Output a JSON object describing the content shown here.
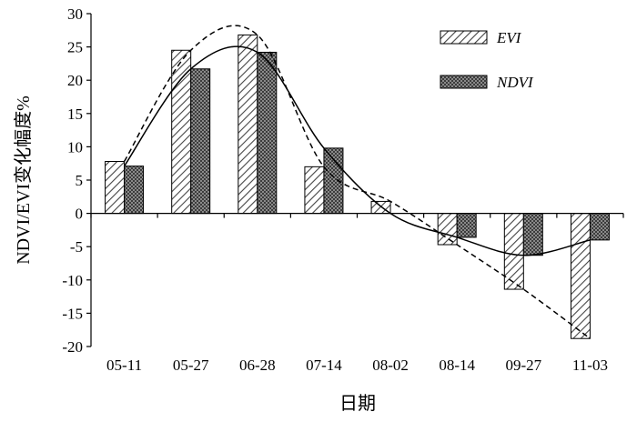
{
  "chart_data": {
    "type": "bar",
    "title": "",
    "xlabel": "日期",
    "ylabel": "NDVI/EVI变化幅度%",
    "ylim": [
      -20,
      30
    ],
    "yticks": [
      -20,
      -15,
      -10,
      -5,
      0,
      5,
      10,
      15,
      20,
      25,
      30
    ],
    "categories": [
      "05-11",
      "05-27",
      "06-28",
      "07-14",
      "08-02",
      "08-14",
      "09-27",
      "11-03"
    ],
    "series": [
      {
        "name": "EVI",
        "values": [
          7.8,
          24.5,
          26.8,
          7.0,
          1.8,
          -4.7,
          -11.4,
          -18.8
        ],
        "pattern": "hatch",
        "trendline": "dashed"
      },
      {
        "name": "NDVI",
        "values": [
          7.1,
          21.7,
          24.2,
          9.8,
          0.0,
          -3.6,
          -6.3,
          -4.0
        ],
        "pattern": "crosshatch",
        "trendline": "solid"
      }
    ],
    "legend_position": "top-right",
    "grid": false
  }
}
